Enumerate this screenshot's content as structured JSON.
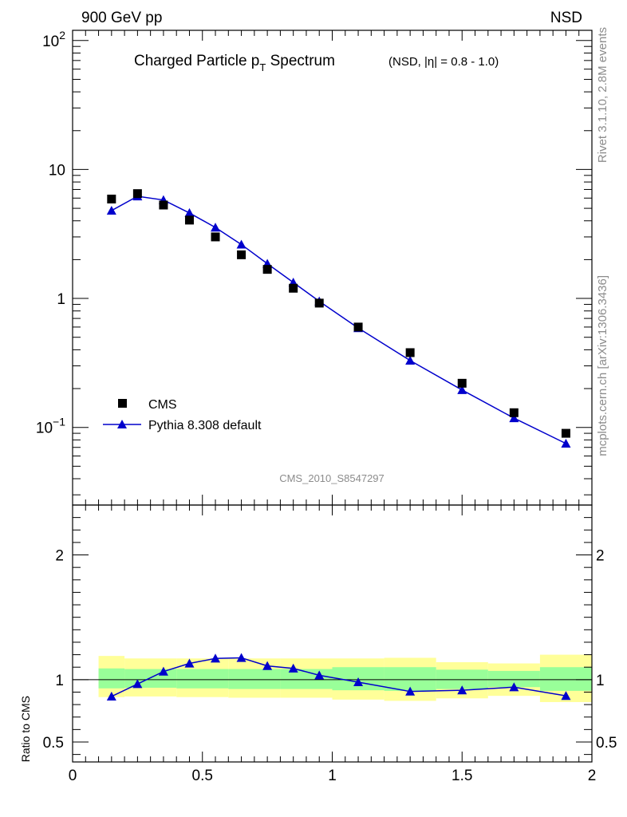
{
  "header": {
    "left": "900 GeV pp",
    "right": "NSD"
  },
  "side_text": {
    "top": "Rivet 3.1.10,  2.8M events",
    "bottom": "mcplots.cern.ch [arXiv:1306.3436]"
  },
  "chart_data": [
    {
      "type": "scatter",
      "title_main": "Charged Particle p",
      "title_sub": "T",
      "title_main2": " Spectrum",
      "title_extra": "(NSD, |η| = 0.8 - 1.0)",
      "analysis_label": "CMS_2010_S8547297",
      "yscale": "log",
      "xlim": [
        0,
        2
      ],
      "ylim": [
        0.025,
        120
      ],
      "yticks": [
        {
          "value": 100,
          "base": "10",
          "exp": "2"
        },
        {
          "value": 10,
          "base": "10",
          "exp": ""
        },
        {
          "value": 1,
          "base": "1",
          "exp": ""
        },
        {
          "value": 0.1,
          "base": "10",
          "exp": "−1"
        }
      ],
      "legend_position": "bottom-left",
      "series": [
        {
          "name": "CMS",
          "marker": "square",
          "color": "#000000",
          "x": [
            0.15,
            0.25,
            0.35,
            0.45,
            0.55,
            0.65,
            0.75,
            0.85,
            0.95,
            1.1,
            1.3,
            1.5,
            1.7,
            1.9
          ],
          "y": [
            5.9,
            6.5,
            5.3,
            4.05,
            3.0,
            2.18,
            1.68,
            1.2,
            0.92,
            0.6,
            0.38,
            0.22,
            0.13,
            0.09
          ]
        },
        {
          "name": "Pythia 8.308 default",
          "marker": "triangle",
          "color": "#0000cc",
          "x": [
            0.15,
            0.25,
            0.35,
            0.45,
            0.55,
            0.65,
            0.75,
            0.85,
            0.95,
            1.1,
            1.3,
            1.5,
            1.7,
            1.9
          ],
          "y": [
            4.8,
            6.2,
            5.8,
            4.6,
            3.55,
            2.62,
            1.86,
            1.33,
            0.95,
            0.59,
            0.33,
            0.195,
            0.118,
            0.075
          ]
        }
      ]
    },
    {
      "type": "line",
      "ylabel": "Ratio to CMS",
      "xlim": [
        0,
        2
      ],
      "ylim": [
        0.34,
        2.4
      ],
      "xticks": [
        {
          "value": 0,
          "label": "0"
        },
        {
          "value": 0.5,
          "label": "0.5"
        },
        {
          "value": 1,
          "label": "1"
        },
        {
          "value": 1.5,
          "label": "1.5"
        },
        {
          "value": 2,
          "label": "2"
        }
      ],
      "yticks": [
        {
          "value": 0.5,
          "label": "0.5"
        },
        {
          "value": 1,
          "label": "1"
        },
        {
          "value": 2,
          "label": "2"
        }
      ],
      "bands": {
        "outer_color": "#ffff99",
        "inner_color": "#99ff99",
        "bins": [
          {
            "lo": 0.1,
            "hi": 0.2,
            "outer": [
              0.86,
              1.19
            ],
            "inner": [
              0.93,
              1.09
            ]
          },
          {
            "lo": 0.2,
            "hi": 0.4,
            "outer": [
              0.865,
              1.17
            ],
            "inner": [
              0.935,
              1.085
            ]
          },
          {
            "lo": 0.4,
            "hi": 0.6,
            "outer": [
              0.86,
              1.17
            ],
            "inner": [
              0.93,
              1.085
            ]
          },
          {
            "lo": 0.6,
            "hi": 0.8,
            "outer": [
              0.855,
              1.17
            ],
            "inner": [
              0.925,
              1.085
            ]
          },
          {
            "lo": 0.8,
            "hi": 1.0,
            "outer": [
              0.855,
              1.17
            ],
            "inner": [
              0.925,
              1.085
            ]
          },
          {
            "lo": 1.0,
            "hi": 1.2,
            "outer": [
              0.84,
              1.17
            ],
            "inner": [
              0.915,
              1.1
            ]
          },
          {
            "lo": 1.2,
            "hi": 1.4,
            "outer": [
              0.83,
              1.175
            ],
            "inner": [
              0.91,
              1.1
            ]
          },
          {
            "lo": 1.4,
            "hi": 1.6,
            "outer": [
              0.85,
              1.14
            ],
            "inner": [
              0.925,
              1.08
            ]
          },
          {
            "lo": 1.6,
            "hi": 1.8,
            "outer": [
              0.87,
              1.13
            ],
            "inner": [
              0.94,
              1.07
            ]
          },
          {
            "lo": 1.8,
            "hi": 2.0,
            "outer": [
              0.82,
              1.2
            ],
            "inner": [
              0.91,
              1.1
            ]
          }
        ]
      },
      "series": [
        {
          "name": "Pythia 8.308 default",
          "color": "#0000cc",
          "x": [
            0.15,
            0.25,
            0.35,
            0.45,
            0.55,
            0.65,
            0.75,
            0.85,
            0.95,
            1.1,
            1.3,
            1.5,
            1.7,
            1.9
          ],
          "y": [
            0.865,
            0.965,
            1.065,
            1.13,
            1.17,
            1.175,
            1.11,
            1.09,
            1.035,
            0.98,
            0.905,
            0.915,
            0.94,
            0.87
          ]
        }
      ]
    }
  ]
}
